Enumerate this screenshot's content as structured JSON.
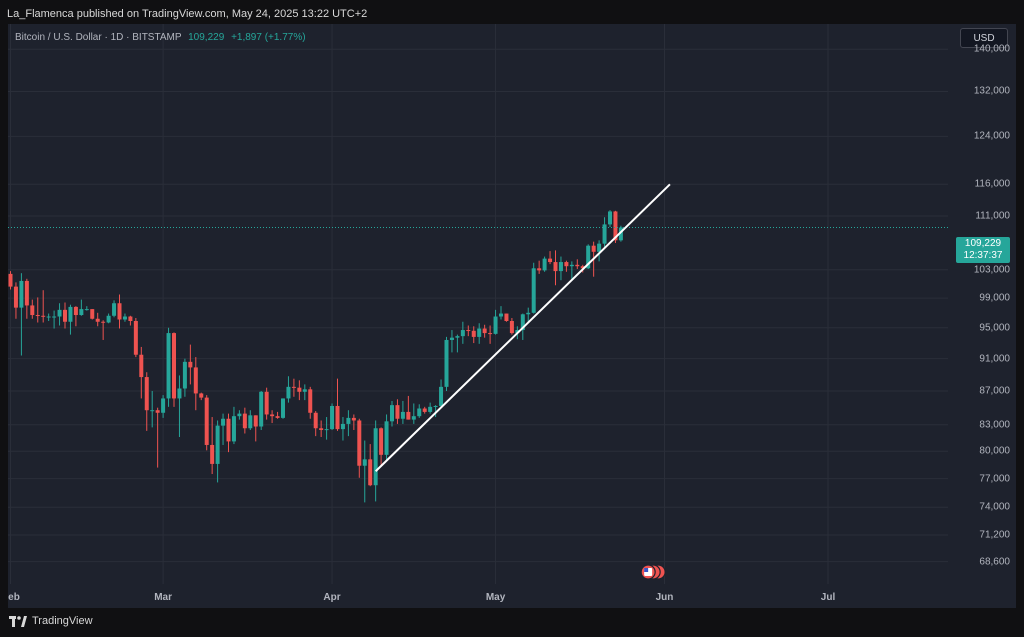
{
  "header": {
    "published_text": "La_Flamenca published on TradingView.com, May 24, 2025 13:22 UTC+2"
  },
  "legend": {
    "symbol": "Bitcoin / U.S. Dollar · 1D · BITSTAMP",
    "last": "109,229",
    "change": "+1,897 (+1.77%)"
  },
  "currency_button": "USD",
  "price_tag": {
    "price": "109,229",
    "countdown": "12:37:37"
  },
  "footer": {
    "brand": "TradingView"
  },
  "colors": {
    "up": "#26a69a",
    "down": "#ef5350",
    "background": "#1e222d",
    "price_line": "#26a69a",
    "trendline": "#ffffff"
  },
  "chart_data": {
    "type": "candlestick",
    "title": "",
    "xlabel": "",
    "ylabel": "",
    "y_scale": "log",
    "ylim": [
      66500,
      145000
    ],
    "yticks": [
      "140,000",
      "132,000",
      "124,000",
      "116,000",
      "111,000",
      "103,000",
      "99,000",
      "95,000",
      "91,000",
      "87,000",
      "83,000",
      "80,000",
      "77,000",
      "74,000",
      "71,200",
      "68,600"
    ],
    "xticks": [
      {
        "label": "eb",
        "date": "2025-02-01"
      },
      {
        "label": "Mar",
        "date": "2025-03-01"
      },
      {
        "label": "Apr",
        "date": "2025-04-01"
      },
      {
        "label": "May",
        "date": "2025-05-01"
      },
      {
        "label": "Jun",
        "date": "2025-06-01"
      },
      {
        "label": "Jul",
        "date": "2025-07-01"
      }
    ],
    "candles": [
      {
        "d": "2025-02-01",
        "o": 102400,
        "h": 102800,
        "l": 100200,
        "c": 100600
      },
      {
        "d": "2025-02-02",
        "o": 100600,
        "h": 101200,
        "l": 96200,
        "c": 97700
      },
      {
        "d": "2025-02-03",
        "o": 97700,
        "h": 102500,
        "l": 91400,
        "c": 101400
      },
      {
        "d": "2025-02-04",
        "o": 101400,
        "h": 101700,
        "l": 96200,
        "c": 98000
      },
      {
        "d": "2025-02-05",
        "o": 98000,
        "h": 98800,
        "l": 96200,
        "c": 96700
      },
      {
        "d": "2025-02-06",
        "o": 96700,
        "h": 99100,
        "l": 95700,
        "c": 96600
      },
      {
        "d": "2025-02-07",
        "o": 96600,
        "h": 100100,
        "l": 95700,
        "c": 96500
      },
      {
        "d": "2025-02-08",
        "o": 96500,
        "h": 96900,
        "l": 95900,
        "c": 96500
      },
      {
        "d": "2025-02-09",
        "o": 96500,
        "h": 97300,
        "l": 94900,
        "c": 96500
      },
      {
        "d": "2025-02-10",
        "o": 96500,
        "h": 98300,
        "l": 95300,
        "c": 97400
      },
      {
        "d": "2025-02-11",
        "o": 97400,
        "h": 98400,
        "l": 94900,
        "c": 95800
      },
      {
        "d": "2025-02-12",
        "o": 95800,
        "h": 98100,
        "l": 94100,
        "c": 97800
      },
      {
        "d": "2025-02-13",
        "o": 97800,
        "h": 97900,
        "l": 95200,
        "c": 96700
      },
      {
        "d": "2025-02-14",
        "o": 96700,
        "h": 98800,
        "l": 96600,
        "c": 97500
      },
      {
        "d": "2025-02-15",
        "o": 97500,
        "h": 97900,
        "l": 97300,
        "c": 97500
      },
      {
        "d": "2025-02-16",
        "o": 97500,
        "h": 97500,
        "l": 96100,
        "c": 96200
      },
      {
        "d": "2025-02-17",
        "o": 96200,
        "h": 97000,
        "l": 95200,
        "c": 95800
      },
      {
        "d": "2025-02-18",
        "o": 95800,
        "h": 96000,
        "l": 93400,
        "c": 95700
      },
      {
        "d": "2025-02-19",
        "o": 95700,
        "h": 96900,
        "l": 95600,
        "c": 96600
      },
      {
        "d": "2025-02-20",
        "o": 96600,
        "h": 98700,
        "l": 96400,
        "c": 98300
      },
      {
        "d": "2025-02-21",
        "o": 98300,
        "h": 99500,
        "l": 94900,
        "c": 96100
      },
      {
        "d": "2025-02-22",
        "o": 96100,
        "h": 96900,
        "l": 95800,
        "c": 96500
      },
      {
        "d": "2025-02-23",
        "o": 96500,
        "h": 96600,
        "l": 95300,
        "c": 95900
      },
      {
        "d": "2025-02-24",
        "o": 95900,
        "h": 96300,
        "l": 91200,
        "c": 91500
      },
      {
        "d": "2025-02-25",
        "o": 91500,
        "h": 92500,
        "l": 86100,
        "c": 88700
      },
      {
        "d": "2025-02-26",
        "o": 88700,
        "h": 89300,
        "l": 82300,
        "c": 84700
      },
      {
        "d": "2025-02-27",
        "o": 84700,
        "h": 87000,
        "l": 82700,
        "c": 84700
      },
      {
        "d": "2025-02-28",
        "o": 84700,
        "h": 85000,
        "l": 78200,
        "c": 84400
      },
      {
        "d": "2025-03-01",
        "o": 84400,
        "h": 86500,
        "l": 83800,
        "c": 86100
      },
      {
        "d": "2025-03-02",
        "o": 86100,
        "h": 95000,
        "l": 85100,
        "c": 94300
      },
      {
        "d": "2025-03-03",
        "o": 94300,
        "h": 94400,
        "l": 85100,
        "c": 86100
      },
      {
        "d": "2025-03-04",
        "o": 86100,
        "h": 88900,
        "l": 81600,
        "c": 87300
      },
      {
        "d": "2025-03-05",
        "o": 87300,
        "h": 91000,
        "l": 86300,
        "c": 90600
      },
      {
        "d": "2025-03-06",
        "o": 90600,
        "h": 92800,
        "l": 87800,
        "c": 89900
      },
      {
        "d": "2025-03-07",
        "o": 89900,
        "h": 91200,
        "l": 84700,
        "c": 86700
      },
      {
        "d": "2025-03-08",
        "o": 86700,
        "h": 86800,
        "l": 85900,
        "c": 86200
      },
      {
        "d": "2025-03-09",
        "o": 86200,
        "h": 86500,
        "l": 80100,
        "c": 80700
      },
      {
        "d": "2025-03-10",
        "o": 80700,
        "h": 83900,
        "l": 77500,
        "c": 78600
      },
      {
        "d": "2025-03-11",
        "o": 78600,
        "h": 83500,
        "l": 76600,
        "c": 82900
      },
      {
        "d": "2025-03-12",
        "o": 82900,
        "h": 84300,
        "l": 80700,
        "c": 83700
      },
      {
        "d": "2025-03-13",
        "o": 83700,
        "h": 84300,
        "l": 79900,
        "c": 81100
      },
      {
        "d": "2025-03-14",
        "o": 81100,
        "h": 85100,
        "l": 80800,
        "c": 84000
      },
      {
        "d": "2025-03-15",
        "o": 84000,
        "h": 84700,
        "l": 83600,
        "c": 84300
      },
      {
        "d": "2025-03-16",
        "o": 84300,
        "h": 85000,
        "l": 82000,
        "c": 82600
      },
      {
        "d": "2025-03-17",
        "o": 82600,
        "h": 84700,
        "l": 82400,
        "c": 84100
      },
      {
        "d": "2025-03-18",
        "o": 84100,
        "h": 84100,
        "l": 81100,
        "c": 82800
      },
      {
        "d": "2025-03-19",
        "o": 82800,
        "h": 87000,
        "l": 82400,
        "c": 86900
      },
      {
        "d": "2025-03-20",
        "o": 86900,
        "h": 87400,
        "l": 83600,
        "c": 84200
      },
      {
        "d": "2025-03-21",
        "o": 84200,
        "h": 84700,
        "l": 83200,
        "c": 84000
      },
      {
        "d": "2025-03-22",
        "o": 84000,
        "h": 84500,
        "l": 83700,
        "c": 83800
      },
      {
        "d": "2025-03-23",
        "o": 83800,
        "h": 86100,
        "l": 83700,
        "c": 86100
      },
      {
        "d": "2025-03-24",
        "o": 86100,
        "h": 88800,
        "l": 85600,
        "c": 87500
      },
      {
        "d": "2025-03-25",
        "o": 87500,
        "h": 88500,
        "l": 86300,
        "c": 87400
      },
      {
        "d": "2025-03-26",
        "o": 87400,
        "h": 88300,
        "l": 85900,
        "c": 86900
      },
      {
        "d": "2025-03-27",
        "o": 86900,
        "h": 87800,
        "l": 85900,
        "c": 87200
      },
      {
        "d": "2025-03-28",
        "o": 87200,
        "h": 87500,
        "l": 83700,
        "c": 84400
      },
      {
        "d": "2025-03-29",
        "o": 84400,
        "h": 84600,
        "l": 81700,
        "c": 82600
      },
      {
        "d": "2025-03-30",
        "o": 82600,
        "h": 83500,
        "l": 81600,
        "c": 82400
      },
      {
        "d": "2025-03-31",
        "o": 82400,
        "h": 83900,
        "l": 81300,
        "c": 82500
      },
      {
        "d": "2025-04-01",
        "o": 82500,
        "h": 85500,
        "l": 82400,
        "c": 85200
      },
      {
        "d": "2025-04-02",
        "o": 85200,
        "h": 88500,
        "l": 82300,
        "c": 82500
      },
      {
        "d": "2025-04-03",
        "o": 82500,
        "h": 83900,
        "l": 81200,
        "c": 83100
      },
      {
        "d": "2025-04-04",
        "o": 83100,
        "h": 84700,
        "l": 81700,
        "c": 83800
      },
      {
        "d": "2025-04-05",
        "o": 83800,
        "h": 84200,
        "l": 82400,
        "c": 83500
      },
      {
        "d": "2025-04-06",
        "o": 83500,
        "h": 83700,
        "l": 77100,
        "c": 78400
      },
      {
        "d": "2025-04-07",
        "o": 78400,
        "h": 81200,
        "l": 74500,
        "c": 79100
      },
      {
        "d": "2025-04-08",
        "o": 79100,
        "h": 80800,
        "l": 76200,
        "c": 76300
      },
      {
        "d": "2025-04-09",
        "o": 76300,
        "h": 83500,
        "l": 74600,
        "c": 82600
      },
      {
        "d": "2025-04-10",
        "o": 82600,
        "h": 82700,
        "l": 78500,
        "c": 79600
      },
      {
        "d": "2025-04-11",
        "o": 79600,
        "h": 84200,
        "l": 78900,
        "c": 83400
      },
      {
        "d": "2025-04-12",
        "o": 83400,
        "h": 85800,
        "l": 82800,
        "c": 85300
      },
      {
        "d": "2025-04-13",
        "o": 85300,
        "h": 86000,
        "l": 83100,
        "c": 83700
      },
      {
        "d": "2025-04-14",
        "o": 83700,
        "h": 85800,
        "l": 83100,
        "c": 84500
      },
      {
        "d": "2025-04-15",
        "o": 84500,
        "h": 86400,
        "l": 83600,
        "c": 83600
      },
      {
        "d": "2025-04-16",
        "o": 83600,
        "h": 85500,
        "l": 83100,
        "c": 84000
      },
      {
        "d": "2025-04-17",
        "o": 84000,
        "h": 85400,
        "l": 83800,
        "c": 84900
      },
      {
        "d": "2025-04-18",
        "o": 84900,
        "h": 85100,
        "l": 84300,
        "c": 84500
      },
      {
        "d": "2025-04-19",
        "o": 84500,
        "h": 85600,
        "l": 84300,
        "c": 85100
      },
      {
        "d": "2025-04-20",
        "o": 85100,
        "h": 85300,
        "l": 83900,
        "c": 85200
      },
      {
        "d": "2025-04-21",
        "o": 85200,
        "h": 88400,
        "l": 85100,
        "c": 87500
      },
      {
        "d": "2025-04-22",
        "o": 87500,
        "h": 93800,
        "l": 87000,
        "c": 93400
      },
      {
        "d": "2025-04-23",
        "o": 93400,
        "h": 94700,
        "l": 91800,
        "c": 93700
      },
      {
        "d": "2025-04-24",
        "o": 93700,
        "h": 94100,
        "l": 91800,
        "c": 93900
      },
      {
        "d": "2025-04-25",
        "o": 93900,
        "h": 95800,
        "l": 92900,
        "c": 94700
      },
      {
        "d": "2025-04-26",
        "o": 94700,
        "h": 95300,
        "l": 93900,
        "c": 94600
      },
      {
        "d": "2025-04-27",
        "o": 94600,
        "h": 95200,
        "l": 93000,
        "c": 93800
      },
      {
        "d": "2025-04-28",
        "o": 93800,
        "h": 95600,
        "l": 92900,
        "c": 94900
      },
      {
        "d": "2025-04-29",
        "o": 94900,
        "h": 95400,
        "l": 93700,
        "c": 94300
      },
      {
        "d": "2025-04-30",
        "o": 94300,
        "h": 95300,
        "l": 92900,
        "c": 94200
      },
      {
        "d": "2025-05-01",
        "o": 94200,
        "h": 97400,
        "l": 94100,
        "c": 96500
      },
      {
        "d": "2025-05-02",
        "o": 96500,
        "h": 97900,
        "l": 96100,
        "c": 96900
      },
      {
        "d": "2025-05-03",
        "o": 96900,
        "h": 96900,
        "l": 95800,
        "c": 95900
      },
      {
        "d": "2025-05-04",
        "o": 95900,
        "h": 96300,
        "l": 94100,
        "c": 94300
      },
      {
        "d": "2025-05-05",
        "o": 94300,
        "h": 95200,
        "l": 93500,
        "c": 94700
      },
      {
        "d": "2025-05-06",
        "o": 94700,
        "h": 96900,
        "l": 93400,
        "c": 96800
      },
      {
        "d": "2025-05-07",
        "o": 96800,
        "h": 97700,
        "l": 95800,
        "c": 97000
      },
      {
        "d": "2025-05-08",
        "o": 97000,
        "h": 104000,
        "l": 96900,
        "c": 103200
      },
      {
        "d": "2025-05-09",
        "o": 103200,
        "h": 104300,
        "l": 102400,
        "c": 102900
      },
      {
        "d": "2025-05-10",
        "o": 102900,
        "h": 104900,
        "l": 102700,
        "c": 104600
      },
      {
        "d": "2025-05-11",
        "o": 104600,
        "h": 105700,
        "l": 103800,
        "c": 104100
      },
      {
        "d": "2025-05-12",
        "o": 104100,
        "h": 105800,
        "l": 100800,
        "c": 102800
      },
      {
        "d": "2025-05-13",
        "o": 102800,
        "h": 104900,
        "l": 101500,
        "c": 104100
      },
      {
        "d": "2025-05-14",
        "o": 104100,
        "h": 104300,
        "l": 102700,
        "c": 103500
      },
      {
        "d": "2025-05-15",
        "o": 103500,
        "h": 104200,
        "l": 101400,
        "c": 103700
      },
      {
        "d": "2025-05-16",
        "o": 103700,
        "h": 104500,
        "l": 103100,
        "c": 103500
      },
      {
        "d": "2025-05-17",
        "o": 103500,
        "h": 103700,
        "l": 102600,
        "c": 103200
      },
      {
        "d": "2025-05-18",
        "o": 103200,
        "h": 106700,
        "l": 103100,
        "c": 106500
      },
      {
        "d": "2025-05-19",
        "o": 106500,
        "h": 107100,
        "l": 102000,
        "c": 105600
      },
      {
        "d": "2025-05-20",
        "o": 105600,
        "h": 107300,
        "l": 104200,
        "c": 106800
      },
      {
        "d": "2025-05-21",
        "o": 106800,
        "h": 110800,
        "l": 106200,
        "c": 109700
      },
      {
        "d": "2025-05-22",
        "o": 109700,
        "h": 111900,
        "l": 109300,
        "c": 111700
      },
      {
        "d": "2025-05-23",
        "o": 111700,
        "h": 111800,
        "l": 106900,
        "c": 107300
      },
      {
        "d": "2025-05-24",
        "o": 107300,
        "h": 109500,
        "l": 107100,
        "c": 109229
      }
    ],
    "trendline": {
      "from": {
        "d": "2025-04-09",
        "price": 77800
      },
      "to": {
        "d": "2025-06-02",
        "price": 116000
      }
    },
    "last_price_line": 109229,
    "event_marker": {
      "d": "2025-05-29",
      "icon": "us-flag-icon",
      "count": 3
    }
  }
}
